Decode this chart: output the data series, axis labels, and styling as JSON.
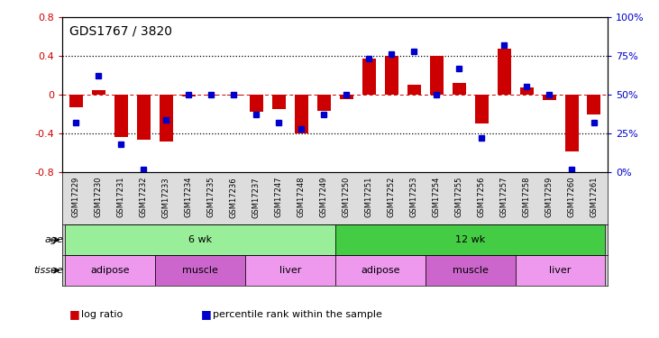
{
  "title": "GDS1767 / 3820",
  "samples": [
    "GSM17229",
    "GSM17230",
    "GSM17231",
    "GSM17232",
    "GSM17233",
    "GSM17234",
    "GSM17235",
    "GSM17236",
    "GSM17237",
    "GSM17247",
    "GSM17248",
    "GSM17249",
    "GSM17250",
    "GSM17251",
    "GSM17252",
    "GSM17253",
    "GSM17254",
    "GSM17255",
    "GSM17256",
    "GSM17257",
    "GSM17258",
    "GSM17259",
    "GSM17260",
    "GSM17261"
  ],
  "log_ratio": [
    -0.13,
    0.05,
    -0.44,
    -0.46,
    -0.48,
    -0.02,
    -0.01,
    -0.01,
    -0.18,
    -0.15,
    -0.4,
    -0.17,
    -0.05,
    0.37,
    0.4,
    0.1,
    0.4,
    0.12,
    -0.3,
    0.47,
    0.07,
    -0.06,
    -0.58,
    -0.2
  ],
  "percentile_rank": [
    32,
    62,
    18,
    2,
    34,
    50,
    50,
    50,
    37,
    32,
    28,
    37,
    50,
    73,
    76,
    78,
    50,
    67,
    22,
    82,
    55,
    50,
    2,
    32
  ],
  "bar_color": "#cc0000",
  "dot_color": "#0000cc",
  "ylim_left": [
    -0.8,
    0.8
  ],
  "ylim_right": [
    0,
    100
  ],
  "yticks_left": [
    -0.8,
    -0.4,
    0.0,
    0.4,
    0.8
  ],
  "yticks_right": [
    0,
    25,
    50,
    75,
    100
  ],
  "ytick_labels_right": [
    "0%",
    "25%",
    "50%",
    "75%",
    "100%"
  ],
  "age_groups": [
    {
      "label": "6 wk",
      "start": 0,
      "end": 12,
      "color": "#99ee99"
    },
    {
      "label": "12 wk",
      "start": 12,
      "end": 24,
      "color": "#44cc44"
    }
  ],
  "tissue_groups": [
    {
      "label": "adipose",
      "start": 0,
      "end": 4,
      "color": "#ee99ee"
    },
    {
      "label": "muscle",
      "start": 4,
      "end": 8,
      "color": "#cc66cc"
    },
    {
      "label": "liver",
      "start": 8,
      "end": 12,
      "color": "#ee99ee"
    },
    {
      "label": "adipose",
      "start": 12,
      "end": 16,
      "color": "#ee99ee"
    },
    {
      "label": "muscle",
      "start": 16,
      "end": 20,
      "color": "#cc66cc"
    },
    {
      "label": "liver",
      "start": 20,
      "end": 24,
      "color": "#ee99ee"
    }
  ],
  "bg_color": "#ffffff",
  "xticklabel_bg": "#dddddd"
}
